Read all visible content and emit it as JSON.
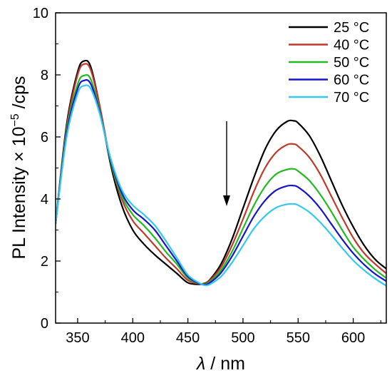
{
  "chart_data": {
    "type": "line",
    "xlabel_symbol": "λ",
    "xlabel_unit": " / nm",
    "ylabel_main": "PL Intensity × 10",
    "ylabel_exp": "−5",
    "ylabel_unit": " /cps",
    "xlim": [
      330,
      630
    ],
    "ylim": [
      0,
      10
    ],
    "xticks": [
      350,
      400,
      450,
      500,
      550,
      600
    ],
    "yticks": [
      0,
      2,
      4,
      6,
      8,
      10
    ],
    "grid": false,
    "legend_position": "top-right",
    "annotation": "downward arrow near 483 nm indicating decreasing intensity with temperature",
    "x": [
      330,
      340,
      350,
      356,
      362,
      370,
      380,
      390,
      400,
      410,
      420,
      430,
      440,
      450,
      460,
      465,
      470,
      480,
      490,
      500,
      510,
      520,
      530,
      540,
      546,
      550,
      560,
      570,
      580,
      590,
      600,
      610,
      620,
      630
    ],
    "series": [
      {
        "name": "25 °C",
        "color": "#000000",
        "values": [
          3.2,
          6.4,
          8.1,
          8.45,
          8.25,
          7.0,
          5.1,
          3.8,
          3.0,
          2.55,
          2.2,
          1.9,
          1.6,
          1.3,
          1.25,
          1.28,
          1.4,
          1.9,
          2.7,
          3.7,
          4.7,
          5.6,
          6.2,
          6.5,
          6.52,
          6.45,
          6.05,
          5.4,
          4.6,
          3.8,
          3.1,
          2.5,
          2.05,
          1.75
        ]
      },
      {
        "name": "40 °C",
        "color": "#c0392b",
        "values": [
          3.2,
          6.3,
          8.0,
          8.35,
          8.15,
          7.0,
          5.2,
          4.0,
          3.3,
          2.9,
          2.5,
          2.1,
          1.75,
          1.38,
          1.27,
          1.27,
          1.38,
          1.8,
          2.5,
          3.35,
          4.25,
          5.0,
          5.5,
          5.75,
          5.77,
          5.7,
          5.35,
          4.8,
          4.1,
          3.4,
          2.75,
          2.25,
          1.9,
          1.6
        ]
      },
      {
        "name": "50 °C",
        "color": "#22bb22",
        "values": [
          3.2,
          6.2,
          7.7,
          7.98,
          7.85,
          6.85,
          5.2,
          4.1,
          3.5,
          3.15,
          2.75,
          2.3,
          1.9,
          1.45,
          1.28,
          1.25,
          1.33,
          1.7,
          2.3,
          3.05,
          3.8,
          4.4,
          4.8,
          4.95,
          4.97,
          4.9,
          4.6,
          4.15,
          3.6,
          3.0,
          2.45,
          2.05,
          1.72,
          1.45
        ]
      },
      {
        "name": "60 °C",
        "color": "#1515cc",
        "values": [
          3.2,
          6.1,
          7.55,
          7.82,
          7.7,
          6.8,
          5.25,
          4.2,
          3.65,
          3.35,
          3.0,
          2.5,
          2.0,
          1.5,
          1.28,
          1.24,
          1.3,
          1.62,
          2.15,
          2.8,
          3.45,
          3.95,
          4.28,
          4.42,
          4.43,
          4.38,
          4.1,
          3.7,
          3.2,
          2.7,
          2.25,
          1.88,
          1.58,
          1.35
        ]
      },
      {
        "name": "70 °C",
        "color": "#33c8f0",
        "values": [
          3.2,
          6.0,
          7.4,
          7.65,
          7.55,
          6.75,
          5.3,
          4.3,
          3.8,
          3.5,
          3.15,
          2.65,
          2.1,
          1.55,
          1.3,
          1.22,
          1.25,
          1.5,
          1.95,
          2.5,
          3.05,
          3.45,
          3.72,
          3.83,
          3.84,
          3.8,
          3.58,
          3.25,
          2.85,
          2.42,
          2.02,
          1.7,
          1.43,
          1.2
        ]
      }
    ]
  }
}
